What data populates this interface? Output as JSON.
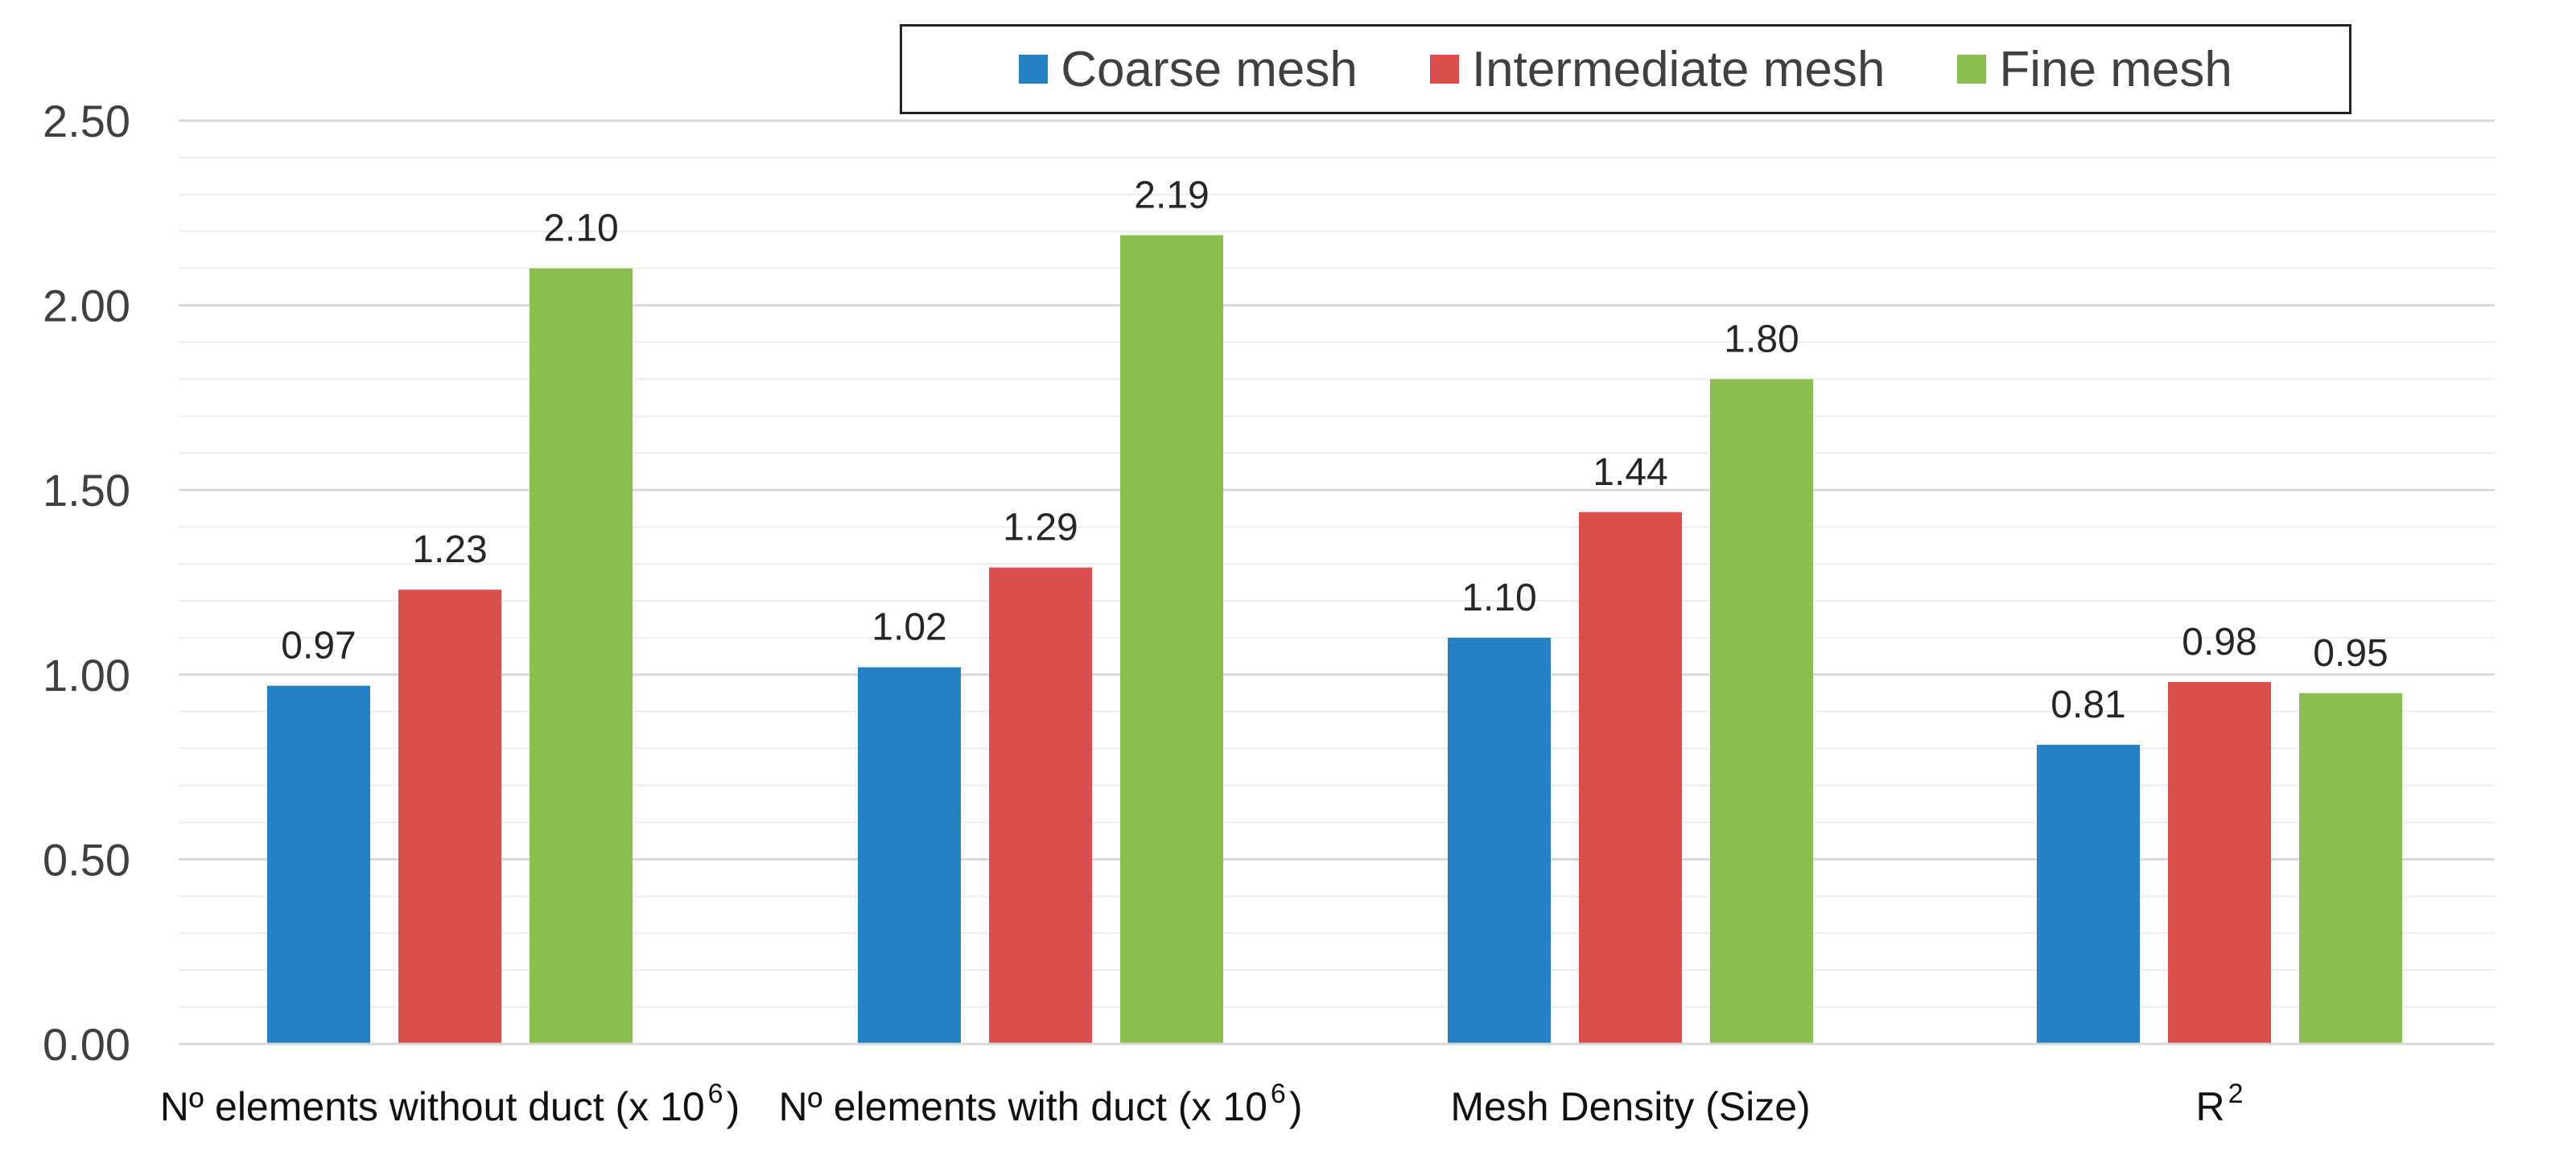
{
  "chart_data": {
    "type": "bar",
    "title": "",
    "xlabel": "",
    "ylabel": "",
    "categories": [
      {
        "text": "Nº elements without duct (x 10",
        "sup": "6",
        "suffix": ")"
      },
      {
        "text": "Nº elements with duct (x 10",
        "sup": "6",
        "suffix": ")"
      },
      {
        "text": "Mesh Density (Size)",
        "sup": "",
        "suffix": ""
      },
      {
        "text": "R",
        "sup": "2",
        "suffix": ""
      }
    ],
    "series": [
      {
        "name": "Coarse mesh",
        "color": "#2381c4",
        "values": [
          0.97,
          1.02,
          1.1,
          0.81
        ],
        "labels": [
          "0.97",
          "1.02",
          "1.10",
          "0.81"
        ]
      },
      {
        "name": "Intermediate mesh",
        "color": "#db4e4c",
        "values": [
          1.23,
          1.29,
          1.44,
          0.98
        ],
        "labels": [
          "1.23",
          "1.29",
          "1.44",
          "0.98"
        ]
      },
      {
        "name": "Fine mesh",
        "color": "#8abf50",
        "values": [
          2.1,
          2.19,
          1.8,
          0.95
        ],
        "labels": [
          "2.10",
          "2.19",
          "1.80",
          "0.95"
        ]
      }
    ],
    "ylim": [
      0,
      2.5
    ],
    "y_ticks": [
      "0.00",
      "0.50",
      "1.00",
      "1.50",
      "2.00",
      "2.50"
    ],
    "y_tick_values": [
      0,
      0.5,
      1.0,
      1.5,
      2.0,
      2.5
    ],
    "minor_grid_step": 0.1,
    "grid": true,
    "legend_position": "top-center"
  }
}
